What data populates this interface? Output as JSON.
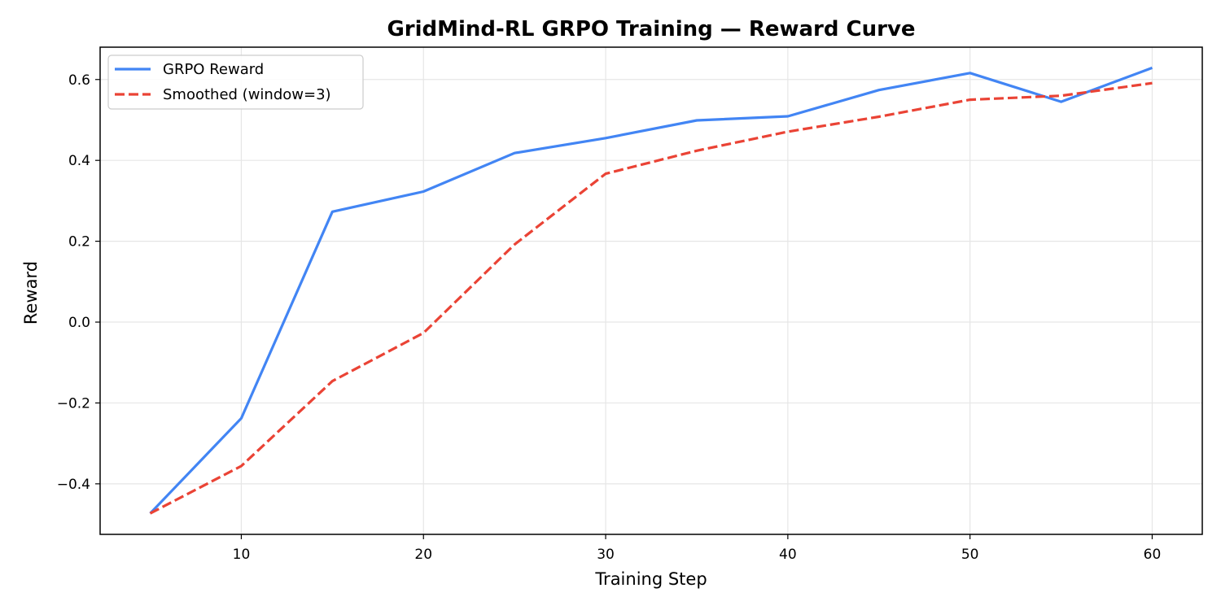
{
  "chart_data": {
    "type": "line",
    "title": "GridMind-RL GRPO Training — Reward Curve",
    "xlabel": "Training Step",
    "ylabel": "Reward",
    "xlim": [
      2.25,
      62.75
    ],
    "ylim": [
      -0.525,
      0.68
    ],
    "x_ticks": [
      10,
      20,
      30,
      40,
      50,
      60
    ],
    "x_tick_labels": [
      "10",
      "20",
      "30",
      "40",
      "50",
      "60"
    ],
    "y_ticks": [
      -0.4,
      -0.2,
      0.0,
      0.2,
      0.4,
      0.6
    ],
    "y_tick_labels": [
      "−0.4",
      "−0.2",
      "0.0",
      "0.2",
      "0.4",
      "0.6"
    ],
    "grid": true,
    "legend_position": "top-left",
    "x": [
      5,
      10,
      15,
      20,
      25,
      30,
      35,
      40,
      45,
      50,
      55,
      60
    ],
    "series": [
      {
        "name": "GRPO Reward",
        "color": "#4285f4",
        "style": "solid",
        "values": [
          -0.473,
          -0.238,
          0.273,
          0.323,
          0.418,
          0.455,
          0.499,
          0.509,
          0.574,
          0.616,
          0.545,
          0.629
        ]
      },
      {
        "name": "Smoothed (window=3)",
        "color": "#ea4335",
        "style": "dashed",
        "values": [
          -0.473,
          -0.356,
          -0.146,
          -0.027,
          0.192,
          0.367,
          0.424,
          0.471,
          0.508,
          0.55,
          0.56,
          0.591
        ]
      }
    ]
  }
}
